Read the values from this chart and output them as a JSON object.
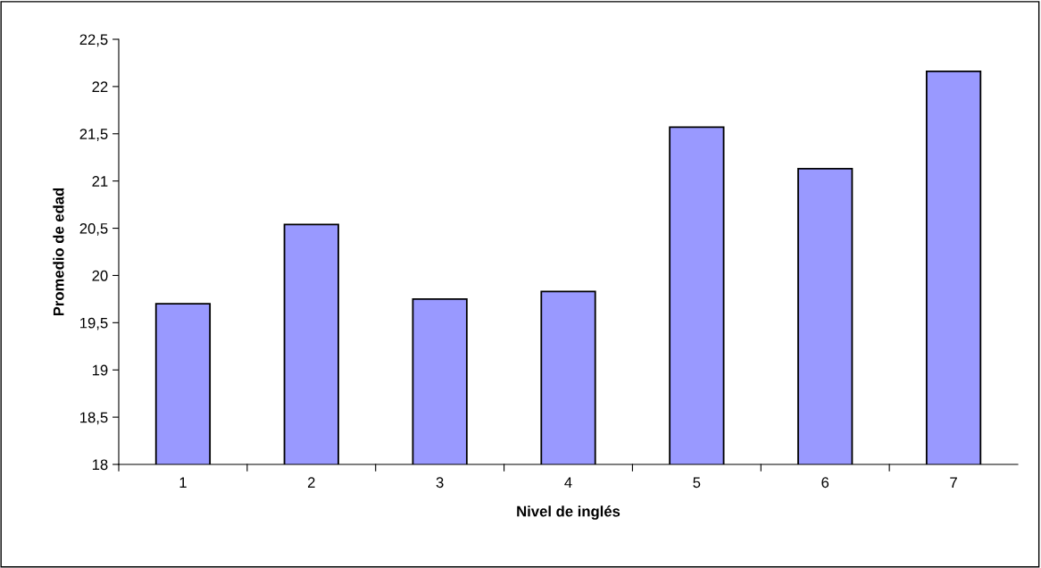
{
  "chart_data": {
    "type": "bar",
    "xlabel": "Nivel de inglés",
    "ylabel": "Promedio de edad",
    "categories": [
      "1",
      "2",
      "3",
      "4",
      "5",
      "6",
      "7"
    ],
    "values": [
      19.7,
      20.54,
      19.75,
      19.83,
      21.57,
      21.13,
      22.16
    ],
    "color": "#9999ff",
    "ylim": [
      18,
      22.5
    ],
    "yticks": [
      18,
      {
        "value": 18.5,
        "label": "18,5"
      },
      19,
      {
        "value": 19.5,
        "label": "19,5"
      },
      20,
      {
        "value": 20.5,
        "label": "20,5"
      },
      21,
      {
        "value": 21.5,
        "label": "21,5"
      },
      22,
      {
        "value": 22.5,
        "label": "22,5"
      }
    ],
    "grid": false,
    "legend": false
  }
}
